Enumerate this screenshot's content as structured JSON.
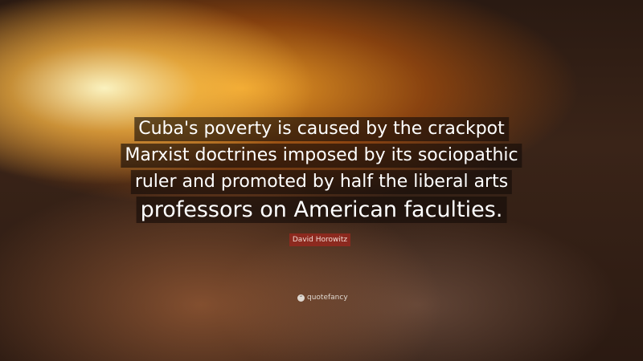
{
  "quote": {
    "lines": [
      "Cuba's poverty is caused by the crackpot",
      "Marxist doctrines imposed by its sociopathic",
      "ruler and promoted by half the liberal arts",
      "professors on American faculties."
    ]
  },
  "author": "David Horowitz",
  "brand": {
    "name": "quotefancy",
    "icon": "quote-marks-icon"
  }
}
